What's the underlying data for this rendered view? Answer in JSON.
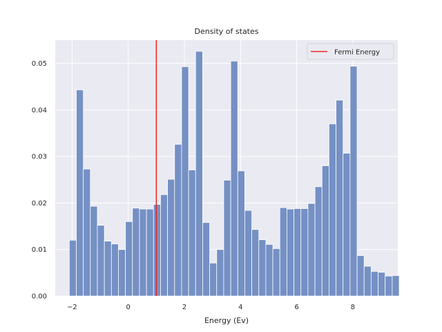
{
  "chart_data": {
    "type": "bar",
    "title": "Density of states",
    "xlabel": "Energy (Ev)",
    "ylabel": "",
    "xlim": [
      -2.6,
      9.6
    ],
    "ylim": [
      0,
      0.055
    ],
    "xticks": [
      -2,
      0,
      2,
      4,
      6,
      8
    ],
    "xtick_labels": [
      "−2",
      "0",
      "2",
      "4",
      "6",
      "8"
    ],
    "yticks": [
      0,
      0.01,
      0.02,
      0.03,
      0.04,
      0.05
    ],
    "ytick_labels": [
      "0.00",
      "0.01",
      "0.02",
      "0.03",
      "0.04",
      "0.05"
    ],
    "bin_start": -2.1,
    "bin_width": 0.25,
    "values": [
      0.012,
      0.0443,
      0.0273,
      0.0193,
      0.0152,
      0.0118,
      0.0112,
      0.01,
      0.016,
      0.0189,
      0.0187,
      0.0187,
      0.0197,
      0.0218,
      0.0251,
      0.0326,
      0.0493,
      0.0271,
      0.0526,
      0.0158,
      0.0071,
      0.01,
      0.0249,
      0.0505,
      0.0269,
      0.0184,
      0.0143,
      0.0121,
      0.0111,
      0.0102,
      0.019,
      0.0187,
      0.0188,
      0.0188,
      0.0199,
      0.0235,
      0.028,
      0.037,
      0.0421,
      0.0307,
      0.0494,
      0.0087,
      0.0064,
      0.0053,
      0.0051,
      0.0043,
      0.0044
    ],
    "vline": {
      "x": 1.0,
      "label": "Fermi Energy",
      "color": "#e8231d"
    },
    "bar_color": "#7590c4",
    "bar_edge": "#ffffff",
    "background": "#eaeaf2",
    "grid": true,
    "legend_position": "top-right"
  }
}
